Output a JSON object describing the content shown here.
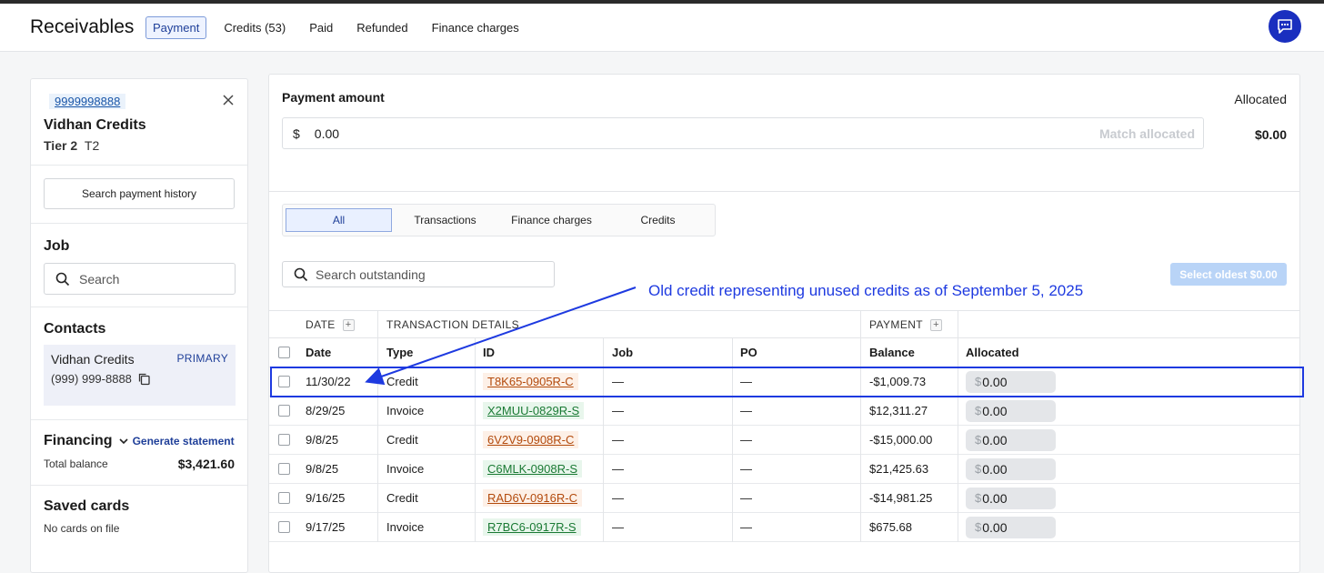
{
  "header": {
    "title": "Receivables",
    "tabs": [
      {
        "label": "Payment",
        "active": true
      },
      {
        "label": "Credits (53)",
        "active": false
      },
      {
        "label": "Paid",
        "active": false
      },
      {
        "label": "Refunded",
        "active": false
      },
      {
        "label": "Finance charges",
        "active": false
      }
    ],
    "chat_icon": "chat-bubble-icon"
  },
  "sidebar": {
    "account_number": "9999998888",
    "customer_name": "Vidhan Credits",
    "tier_label": "Tier 2",
    "tier_code": "T2",
    "search_history_label": "Search payment history",
    "job": {
      "heading": "Job",
      "search_placeholder": "Search"
    },
    "contacts": {
      "heading": "Contacts",
      "name": "Vidhan Credits",
      "badge": "PRIMARY",
      "phone": "(999) 999-8888"
    },
    "financing": {
      "heading": "Financing",
      "link": "Generate statement",
      "balance_label": "Total balance",
      "balance_value": "$3,421.60"
    },
    "saved_cards": {
      "heading": "Saved cards",
      "empty": "No cards on file"
    }
  },
  "payment": {
    "amount_label": "Payment amount",
    "currency": "$",
    "amount_value": "0.00",
    "match_label": "Match allocated",
    "allocated_label": "Allocated",
    "allocated_value": "$0.00"
  },
  "filters": [
    {
      "label": "All",
      "active": true
    },
    {
      "label": "Transactions",
      "active": false
    },
    {
      "label": "Finance charges",
      "active": false
    },
    {
      "label": "Credits",
      "active": false
    }
  ],
  "outstanding": {
    "search_placeholder": "Search outstanding",
    "select_oldest_label": "Select oldest $0.00"
  },
  "annotation": "Old credit representing unused credits as of September 5, 2025",
  "table": {
    "groups": {
      "date": "DATE",
      "details": "TRANSACTION DETAILS",
      "payment": "PAYMENT"
    },
    "columns": [
      "Date",
      "Type",
      "ID",
      "Job",
      "PO",
      "Balance",
      "Allocated"
    ],
    "rows": [
      {
        "date": "11/30/22",
        "type": "Credit",
        "id": "T8K65-0905R-C",
        "job": "—",
        "po": "—",
        "balance": "-$1,009.73",
        "allocated": "0.00"
      },
      {
        "date": "8/29/25",
        "type": "Invoice",
        "id": "X2MUU-0829R-S",
        "job": "—",
        "po": "—",
        "balance": "$12,311.27",
        "allocated": "0.00"
      },
      {
        "date": "9/8/25",
        "type": "Credit",
        "id": "6V2V9-0908R-C",
        "job": "—",
        "po": "—",
        "balance": "-$15,000.00",
        "allocated": "0.00"
      },
      {
        "date": "9/8/25",
        "type": "Invoice",
        "id": "C6MLK-0908R-S",
        "job": "—",
        "po": "—",
        "balance": "$21,425.63",
        "allocated": "0.00"
      },
      {
        "date": "9/16/25",
        "type": "Credit",
        "id": "RAD6V-0916R-C",
        "job": "—",
        "po": "—",
        "balance": "-$14,981.25",
        "allocated": "0.00"
      },
      {
        "date": "9/17/25",
        "type": "Invoice",
        "id": "R7BC6-0917R-S",
        "job": "—",
        "po": "—",
        "balance": "$675.68",
        "allocated": "0.00"
      }
    ]
  },
  "colors": {
    "accent": "#1a2fbf",
    "annotation": "#1e3ae0",
    "credit_id": "#b34a0c",
    "invoice_id": "#1a7a34"
  }
}
